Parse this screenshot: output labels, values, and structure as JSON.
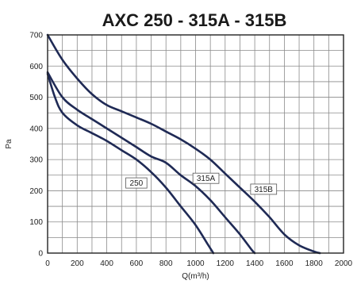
{
  "chart_data": {
    "type": "line",
    "title": "AXC 250 - 315A - 315B",
    "xlabel": "Q(m³/h)",
    "ylabel": "Pa",
    "xlim": [
      0,
      2000
    ],
    "ylim": [
      0,
      700
    ],
    "xticks": [
      0,
      200,
      400,
      600,
      800,
      1000,
      1200,
      1400,
      1600,
      1800,
      2000
    ],
    "yticks": [
      0,
      100,
      200,
      300,
      400,
      500,
      600,
      700
    ],
    "grid": true,
    "series": [
      {
        "name": "250",
        "points": [
          [
            0,
            575
          ],
          [
            50,
            500
          ],
          [
            100,
            450
          ],
          [
            200,
            410
          ],
          [
            300,
            385
          ],
          [
            400,
            360
          ],
          [
            500,
            330
          ],
          [
            600,
            300
          ],
          [
            700,
            260
          ],
          [
            800,
            210
          ],
          [
            900,
            150
          ],
          [
            1000,
            90
          ],
          [
            1080,
            30
          ],
          [
            1120,
            0
          ]
        ]
      },
      {
        "name": "315A",
        "points": [
          [
            0,
            580
          ],
          [
            100,
            500
          ],
          [
            200,
            460
          ],
          [
            300,
            430
          ],
          [
            400,
            400
          ],
          [
            500,
            370
          ],
          [
            600,
            340
          ],
          [
            700,
            310
          ],
          [
            800,
            290
          ],
          [
            900,
            250
          ],
          [
            1000,
            215
          ],
          [
            1100,
            170
          ],
          [
            1200,
            115
          ],
          [
            1300,
            60
          ],
          [
            1380,
            10
          ],
          [
            1400,
            0
          ]
        ]
      },
      {
        "name": "315B",
        "points": [
          [
            0,
            700
          ],
          [
            100,
            620
          ],
          [
            200,
            560
          ],
          [
            300,
            510
          ],
          [
            400,
            475
          ],
          [
            500,
            455
          ],
          [
            600,
            435
          ],
          [
            700,
            415
          ],
          [
            800,
            390
          ],
          [
            900,
            365
          ],
          [
            1000,
            335
          ],
          [
            1100,
            300
          ],
          [
            1200,
            255
          ],
          [
            1300,
            210
          ],
          [
            1400,
            165
          ],
          [
            1500,
            115
          ],
          [
            1600,
            60
          ],
          [
            1700,
            25
          ],
          [
            1800,
            5
          ],
          [
            1840,
            0
          ]
        ]
      }
    ],
    "curve_labels": [
      {
        "text": "250",
        "x": 600,
        "y": 225
      },
      {
        "text": "315A",
        "x": 1070,
        "y": 240
      },
      {
        "text": "315B",
        "x": 1460,
        "y": 205
      }
    ],
    "colors": {
      "curve": "#1f2a55",
      "grid": "#8a8a8a"
    }
  }
}
